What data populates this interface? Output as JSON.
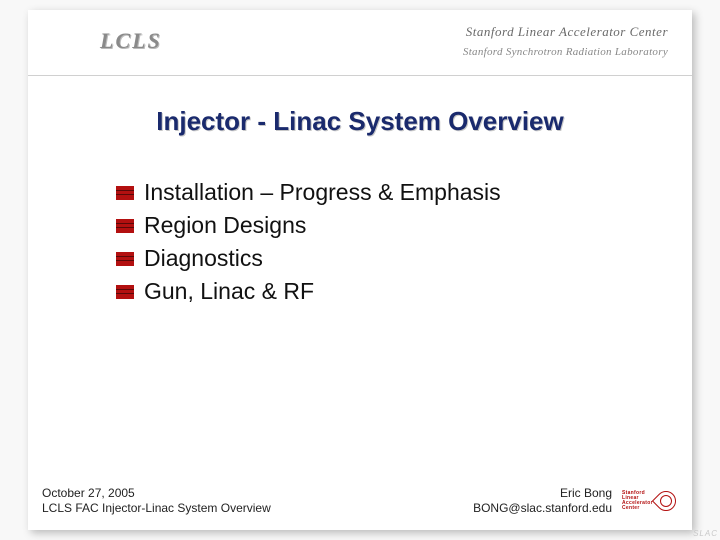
{
  "header": {
    "logo_text": "LCLS",
    "org_line1": "Stanford Linear Accelerator Center",
    "org_line2": "Stanford Synchrotron Radiation Laboratory"
  },
  "title": "Injector - Linac System Overview",
  "bullets": [
    "Installation – Progress & Emphasis",
    "Region Designs",
    "Diagnostics",
    "Gun,  Linac & RF"
  ],
  "footer": {
    "left_line1": "October 27, 2005",
    "left_line2": "LCLS FAC Injector-Linac System Overview",
    "right_line1": "Eric Bong",
    "right_line2": "BONG@slac.stanford.edu",
    "logo_words": "Stanford\nLinear\nAccelerator\nCenter"
  },
  "corner": "SLAC",
  "colors": {
    "title_color": "#1a2a6d",
    "bullet_color": "#b31010",
    "text_color": "#111111",
    "header_text": "#6a6a6a",
    "background": "#ffffff"
  },
  "typography": {
    "title_fontsize": 26,
    "bullet_fontsize": 23,
    "footer_fontsize": 12,
    "header_fontsize": 13
  }
}
